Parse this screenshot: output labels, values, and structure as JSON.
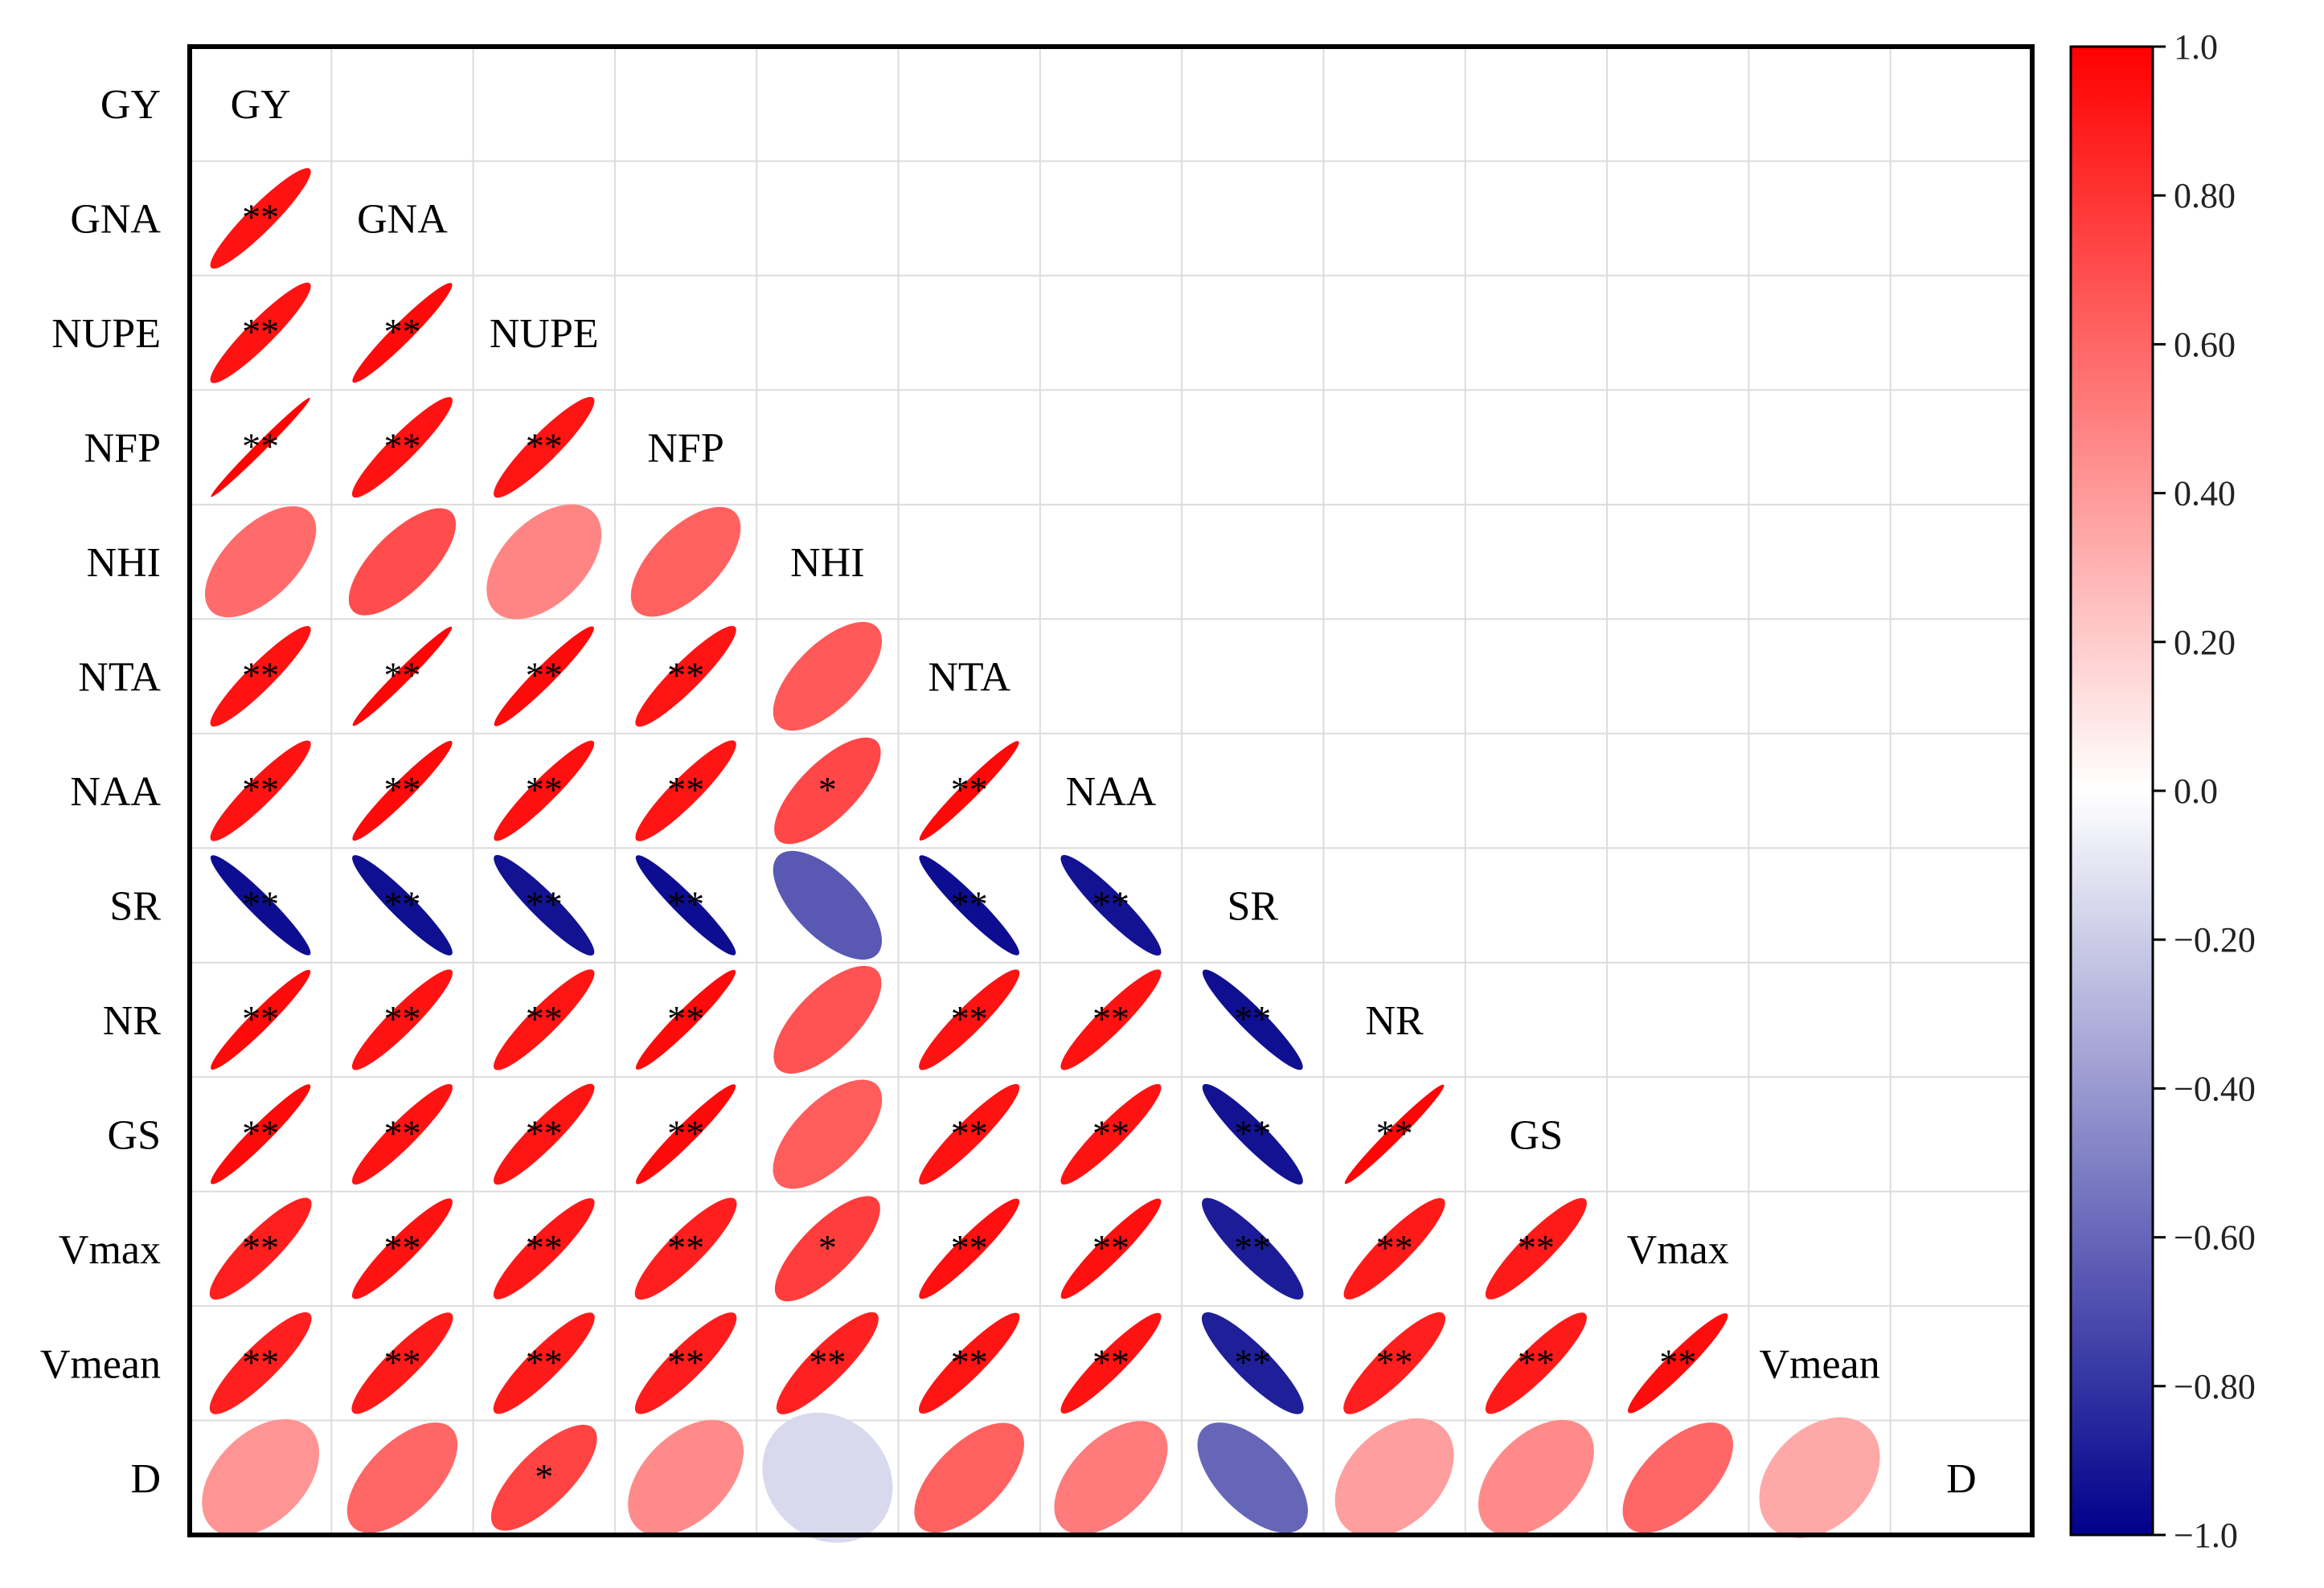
{
  "chart_data": {
    "type": "heatmap",
    "title": "",
    "variables": [
      "GY",
      "GNA",
      "NUPE",
      "NFP",
      "NHI",
      "NTA",
      "NAA",
      "SR",
      "NR",
      "GS",
      "Vmax",
      "Vmean",
      "D"
    ],
    "lower_triangle": [
      [],
      [
        0.93
      ],
      [
        0.93,
        0.96
      ],
      [
        0.99,
        0.93,
        0.92
      ],
      [
        0.58,
        0.7,
        0.48,
        0.62
      ],
      [
        0.93,
        0.98,
        0.96,
        0.92,
        0.65
      ],
      [
        0.93,
        0.96,
        0.94,
        0.92,
        0.72,
        0.97
      ],
      [
        -0.95,
        -0.94,
        -0.93,
        -0.95,
        -0.65,
        -0.95,
        -0.93
      ],
      [
        0.96,
        0.93,
        0.92,
        0.96,
        0.68,
        0.93,
        0.93,
        -0.94
      ],
      [
        0.96,
        0.93,
        0.92,
        0.96,
        0.64,
        0.93,
        0.93,
        -0.93,
        0.98
      ],
      [
        0.88,
        0.93,
        0.91,
        0.88,
        0.76,
        0.94,
        0.94,
        -0.89,
        0.9,
        0.9
      ],
      [
        0.88,
        0.9,
        0.9,
        0.89,
        0.87,
        0.92,
        0.93,
        -0.88,
        0.88,
        0.9,
        0.95
      ],
      [
        0.42,
        0.6,
        0.74,
        0.46,
        -0.15,
        0.62,
        0.52,
        -0.6,
        0.38,
        0.46,
        0.6,
        0.34
      ]
    ],
    "significance": [
      [],
      [
        "**"
      ],
      [
        "**",
        "**"
      ],
      [
        "**",
        "**",
        "**"
      ],
      [
        "",
        "",
        "",
        ""
      ],
      [
        "**",
        "**",
        "**",
        "**",
        ""
      ],
      [
        "**",
        "**",
        "**",
        "**",
        "*",
        "**"
      ],
      [
        "**",
        "**",
        "**",
        "**",
        "",
        "**",
        "**"
      ],
      [
        "**",
        "**",
        "**",
        "**",
        "",
        "**",
        "**",
        "**"
      ],
      [
        "**",
        "**",
        "**",
        "**",
        "",
        "**",
        "**",
        "**",
        "**"
      ],
      [
        "**",
        "**",
        "**",
        "**",
        "*",
        "**",
        "**",
        "**",
        "**",
        "**"
      ],
      [
        "**",
        "**",
        "**",
        "**",
        "**",
        "**",
        "**",
        "**",
        "**",
        "**",
        "**"
      ],
      [
        "",
        "",
        "*",
        "",
        "",
        "",
        "",
        "",
        "",
        "",
        "",
        ""
      ]
    ],
    "colorbar": {
      "range": [
        -1.0,
        1.0
      ],
      "ticks": [
        1.0,
        0.8,
        0.6,
        0.4,
        0.2,
        0.0,
        -0.2,
        -0.4,
        -0.6,
        -0.8,
        -1.0
      ],
      "tick_labels": [
        "1.0",
        "0.80",
        "0.60",
        "0.40",
        "0.20",
        "0.0",
        "−0.20",
        "−0.40",
        "−0.60",
        "−0.80",
        "−1.0"
      ],
      "colors": {
        "high": "#ff0000",
        "mid": "#ffffff",
        "low": "#00008b"
      }
    }
  }
}
